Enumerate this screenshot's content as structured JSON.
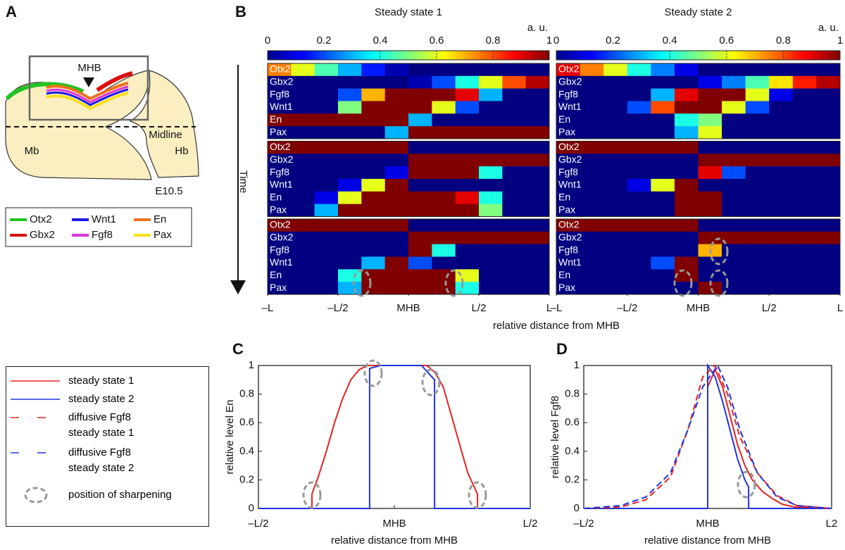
{
  "panel_labels": [
    "A",
    "B",
    "C",
    "D"
  ],
  "diagram": {
    "mhb": "MHB",
    "midline": "Midline",
    "mb": "Mb",
    "hb": "Hb",
    "stage": "E10.5",
    "legend": [
      {
        "name": "Otx2",
        "color": "#22c322"
      },
      {
        "name": "Gbx2",
        "color": "#dd1111"
      },
      {
        "name": "Wnt1",
        "color": "#1a1ae6"
      },
      {
        "name": "Fgf8",
        "color": "#dd33dd"
      },
      {
        "name": "En",
        "color": "#f07020"
      },
      {
        "name": "Pax",
        "color": "#f5e020"
      }
    ]
  },
  "heatmaps": {
    "genes": [
      "Otx2",
      "Gbx2",
      "Fgf8",
      "Wnt1",
      "En",
      "Pax"
    ],
    "time_label": "Time",
    "colorbar": {
      "lim": [
        0,
        1
      ],
      "ticks": [
        0,
        0.2,
        0.4,
        0.6,
        0.8,
        1
      ],
      "unit": "a. u."
    },
    "xlim": [
      -1,
      1
    ],
    "xticks": [
      {
        "value": -1,
        "label": "–L"
      },
      {
        "value": -0.5,
        "label": "–L/2"
      },
      {
        "value": 0,
        "label": "MHB"
      },
      {
        "value": 0.5,
        "label": "L/2"
      },
      {
        "value": 1,
        "label": "L"
      }
    ],
    "xlabel": "relative distance from MHB",
    "panels": [
      {
        "title": "Steady state 1",
        "blocks": [
          [
            [
              0.75,
              0.6,
              0.45,
              0.3,
              0.15,
              0.05,
              0,
              0,
              0,
              0,
              0,
              0
            ],
            [
              0,
              0,
              0,
              0,
              0,
              0,
              0.05,
              0.2,
              0.4,
              0.6,
              0.8,
              0.95
            ],
            [
              0,
              0,
              0,
              0.2,
              0.7,
              1,
              1,
              1,
              0.9,
              0.3,
              0,
              0
            ],
            [
              0,
              0,
              0,
              0.5,
              1,
              1,
              1,
              0.6,
              0.2,
              0,
              0,
              0
            ],
            [
              1,
              1,
              1,
              1,
              1,
              1,
              0.3,
              0,
              0,
              0,
              0,
              0
            ],
            [
              0,
              0,
              0,
              0,
              0,
              0.3,
              1,
              1,
              1,
              1,
              1,
              1
            ]
          ],
          [
            [
              1,
              1,
              1,
              1,
              1,
              1,
              0,
              0,
              0,
              0,
              0,
              0
            ],
            [
              0,
              0,
              0,
              0,
              0,
              0,
              1,
              1,
              1,
              1,
              1,
              1
            ],
            [
              0,
              0,
              0,
              0,
              0,
              0.1,
              1,
              1,
              1,
              0.4,
              0,
              0
            ],
            [
              0,
              0,
              0,
              0.1,
              0.6,
              1,
              0,
              0,
              0,
              0,
              0,
              0
            ],
            [
              0,
              0,
              0.1,
              0.6,
              1,
              1,
              1,
              1,
              0.9,
              0.4,
              0,
              0
            ],
            [
              0,
              0,
              0.3,
              1,
              1,
              1,
              1,
              1,
              1,
              0.5,
              0,
              0
            ]
          ],
          [
            [
              1,
              1,
              1,
              1,
              1,
              1,
              0,
              0,
              0,
              0,
              0,
              0
            ],
            [
              0,
              0,
              0,
              0,
              0,
              0,
              1,
              1,
              1,
              1,
              1,
              1
            ],
            [
              0,
              0,
              0,
              0,
              0,
              0,
              1,
              0.4,
              0,
              0,
              0,
              0
            ],
            [
              0,
              0,
              0,
              0,
              0.3,
              1,
              0.2,
              0,
              0,
              0,
              0,
              0
            ],
            [
              0,
              0,
              0,
              0.4,
              1,
              1,
              1,
              1,
              0.6,
              0,
              0,
              0
            ],
            [
              0,
              0,
              0,
              0.3,
              1,
              1,
              1,
              1,
              0.4,
              0,
              0,
              0
            ]
          ]
        ]
      },
      {
        "title": "Steady state 2",
        "blocks": [
          [
            [
              0.9,
              0.75,
              0.6,
              0.4,
              0.25,
              0.1,
              0,
              0,
              0,
              0,
              0,
              0
            ],
            [
              0,
              0,
              0,
              0,
              0,
              0,
              0.1,
              0.25,
              0.45,
              0.65,
              0.85,
              0.95
            ],
            [
              0,
              0,
              0,
              0,
              0.3,
              0.9,
              1,
              1,
              0.6,
              0.1,
              0,
              0
            ],
            [
              0,
              0,
              0,
              0.2,
              0.8,
              1,
              1,
              0.6,
              0.2,
              0,
              0,
              0
            ],
            [
              0,
              0,
              0,
              0,
              0,
              0.4,
              0.5,
              0,
              0,
              0,
              0,
              0
            ],
            [
              0,
              0,
              0,
              0,
              0,
              0.3,
              0.6,
              0,
              0,
              0,
              0,
              0
            ]
          ],
          [
            [
              1,
              1,
              1,
              1,
              1,
              1,
              0,
              0,
              0,
              0,
              0,
              0
            ],
            [
              0,
              0,
              0,
              0,
              0,
              0,
              1,
              1,
              1,
              1,
              1,
              1
            ],
            [
              0,
              0,
              0,
              0,
              0,
              0,
              0.9,
              0.2,
              0,
              0,
              0,
              0
            ],
            [
              0,
              0,
              0,
              0.1,
              0.6,
              1,
              0,
              0,
              0,
              0,
              0,
              0
            ],
            [
              0,
              0,
              0,
              0,
              0,
              1,
              1,
              0,
              0,
              0,
              0,
              0
            ],
            [
              0,
              0,
              0,
              0,
              0,
              1,
              1,
              0,
              0,
              0,
              0,
              0
            ]
          ],
          [
            [
              1,
              1,
              1,
              1,
              1,
              1,
              0,
              0,
              0,
              0,
              0,
              0
            ],
            [
              0,
              0,
              0,
              0,
              0,
              0,
              1,
              1,
              1,
              1,
              1,
              1
            ],
            [
              0,
              0,
              0,
              0,
              0,
              0,
              0.7,
              0,
              0,
              0,
              0,
              0
            ],
            [
              0,
              0,
              0,
              0,
              0.2,
              1,
              0,
              0,
              0,
              0,
              0,
              0
            ],
            [
              0,
              0,
              0,
              0,
              0,
              1,
              0,
              0,
              0,
              0,
              0,
              0
            ],
            [
              0,
              0,
              0,
              0,
              0,
              0,
              1,
              0,
              0,
              0,
              0,
              0
            ]
          ]
        ]
      }
    ]
  },
  "legend_extra": "position of sharpening",
  "chart_data": [
    {
      "type": "line",
      "ylabel": "relative level En",
      "xlabel": "relative distance from MHB",
      "xlim": [
        -0.5,
        0.5
      ],
      "ylim": [
        0,
        1
      ],
      "xticks": [
        {
          "value": -0.5,
          "label": "–L/2"
        },
        {
          "value": 0,
          "label": "MHB"
        },
        {
          "value": 0.5,
          "label": "L/2"
        }
      ],
      "yticks": [
        0,
        0.2,
        0.4,
        0.6,
        0.8,
        1
      ],
      "series": [
        {
          "color": "#e52222",
          "dashed": false,
          "x": [
            -0.5,
            -0.303,
            -0.303,
            -0.28,
            -0.25,
            -0.22,
            -0.19,
            -0.16,
            -0.13,
            -0.1,
            0,
            0.12,
            0.15,
            0.18,
            0.21,
            0.24,
            0.27,
            0.306,
            0.306,
            0.5
          ],
          "values": [
            0,
            0,
            0.1,
            0.22,
            0.4,
            0.6,
            0.77,
            0.9,
            0.97,
            1,
            1,
            1,
            0.95,
            0.85,
            0.65,
            0.45,
            0.25,
            0.1,
            0,
            0
          ]
        },
        {
          "color": "#2233dd",
          "dashed": false,
          "x": [
            -0.5,
            -0.091,
            -0.091,
            -0.05,
            0.1,
            0.148,
            0.148,
            0.5
          ],
          "values": [
            0,
            0,
            0.98,
            1,
            1,
            0.9,
            0,
            0
          ]
        }
      ]
    },
    {
      "type": "line",
      "ylabel": "relative level Fgf8",
      "xlabel": "relative distance from MHB",
      "xlim": [
        -0.5,
        0.5
      ],
      "ylim": [
        0,
        1
      ],
      "xticks": [
        {
          "value": -0.5,
          "label": "–L/2"
        },
        {
          "value": 0,
          "label": "MHB"
        },
        {
          "value": 0.5,
          "label": "L2"
        }
      ],
      "yticks": [
        0,
        0.2,
        0.4,
        0.6,
        0.8,
        1
      ],
      "series": [
        {
          "name": "steady state 1",
          "color": "#e52222",
          "dashed": false,
          "x": [
            -0.5,
            0,
            0,
            0.03,
            0.06,
            0.09,
            0.12,
            0.15,
            0.18,
            0.22,
            0.26,
            0.3,
            0.35,
            0.5
          ],
          "values": [
            0,
            0,
            0.85,
            0.97,
            0.85,
            0.65,
            0.45,
            0.3,
            0.2,
            0.12,
            0.07,
            0.03,
            0.01,
            0
          ]
        },
        {
          "name": "steady state 2",
          "color": "#2233dd",
          "dashed": false,
          "x": [
            -0.5,
            0,
            0,
            0.03,
            0.06,
            0.09,
            0.12,
            0.15,
            0.165,
            0.165,
            0.5
          ],
          "values": [
            0,
            0,
            1,
            0.92,
            0.75,
            0.55,
            0.35,
            0.2,
            0.15,
            0,
            0
          ]
        },
        {
          "name": "diffusive Fgf8 steady state 1",
          "color": "#e52222",
          "dashed": true,
          "x": [
            -0.5,
            -0.35,
            -0.25,
            -0.15,
            -0.08,
            -0.02,
            0.03,
            0.08,
            0.13,
            0.2,
            0.28,
            0.36,
            0.5
          ],
          "values": [
            0,
            0.01,
            0.06,
            0.22,
            0.55,
            0.92,
            1,
            0.8,
            0.5,
            0.25,
            0.09,
            0.02,
            0
          ]
        },
        {
          "name": "diffusive Fgf8 steady state 2",
          "color": "#2233dd",
          "dashed": true,
          "x": [
            -0.5,
            -0.35,
            -0.25,
            -0.15,
            -0.08,
            -0.02,
            0.04,
            0.08,
            0.13,
            0.2,
            0.28,
            0.36,
            0.5
          ],
          "values": [
            0,
            0.02,
            0.08,
            0.25,
            0.55,
            0.85,
            1,
            0.85,
            0.55,
            0.25,
            0.08,
            0.02,
            0
          ]
        }
      ]
    }
  ]
}
